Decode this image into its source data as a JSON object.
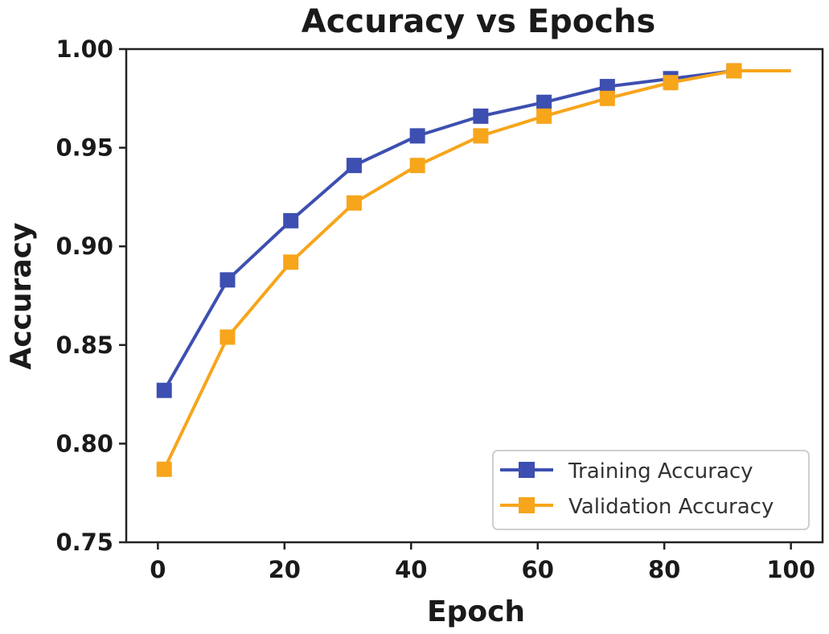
{
  "colors": {
    "training": "#3d4fb0",
    "validation": "#f7a51b",
    "axes": "#222222",
    "legend_border": "#cfcfcf"
  },
  "chart_data": {
    "type": "line",
    "title": "Accuracy vs Epochs",
    "xlabel": "Epoch",
    "ylabel": "Accuracy",
    "xlim": [
      -5,
      105
    ],
    "ylim": [
      0.75,
      1.0
    ],
    "xticks": [
      0,
      20,
      40,
      60,
      80,
      100
    ],
    "xtick_labels": [
      "0",
      "20",
      "40",
      "60",
      "80",
      "100"
    ],
    "yticks": [
      0.75,
      0.8,
      0.85,
      0.9,
      0.95,
      1.0
    ],
    "ytick_labels": [
      "0.75",
      "0.80",
      "0.85",
      "0.90",
      "0.95",
      "1.00"
    ],
    "grid": false,
    "legend_position": "lower-right",
    "marker": "square",
    "series": [
      {
        "name": "Training Accuracy",
        "color": "#3d4fb0",
        "x": [
          1,
          11,
          21,
          31,
          41,
          51,
          61,
          71,
          81,
          91,
          100
        ],
        "y": [
          0.827,
          0.883,
          0.913,
          0.941,
          0.956,
          0.966,
          0.973,
          0.981,
          0.985,
          0.989,
          0.989
        ],
        "marker_indices": [
          0,
          1,
          2,
          3,
          4,
          5,
          6,
          7,
          8,
          9
        ]
      },
      {
        "name": "Validation Accuracy",
        "color": "#f7a51b",
        "x": [
          1,
          11,
          21,
          31,
          41,
          51,
          61,
          71,
          81,
          91,
          100
        ],
        "y": [
          0.787,
          0.854,
          0.892,
          0.922,
          0.941,
          0.956,
          0.966,
          0.975,
          0.983,
          0.989,
          0.989
        ],
        "marker_indices": [
          0,
          1,
          2,
          3,
          4,
          5,
          6,
          7,
          8,
          9
        ]
      }
    ]
  }
}
